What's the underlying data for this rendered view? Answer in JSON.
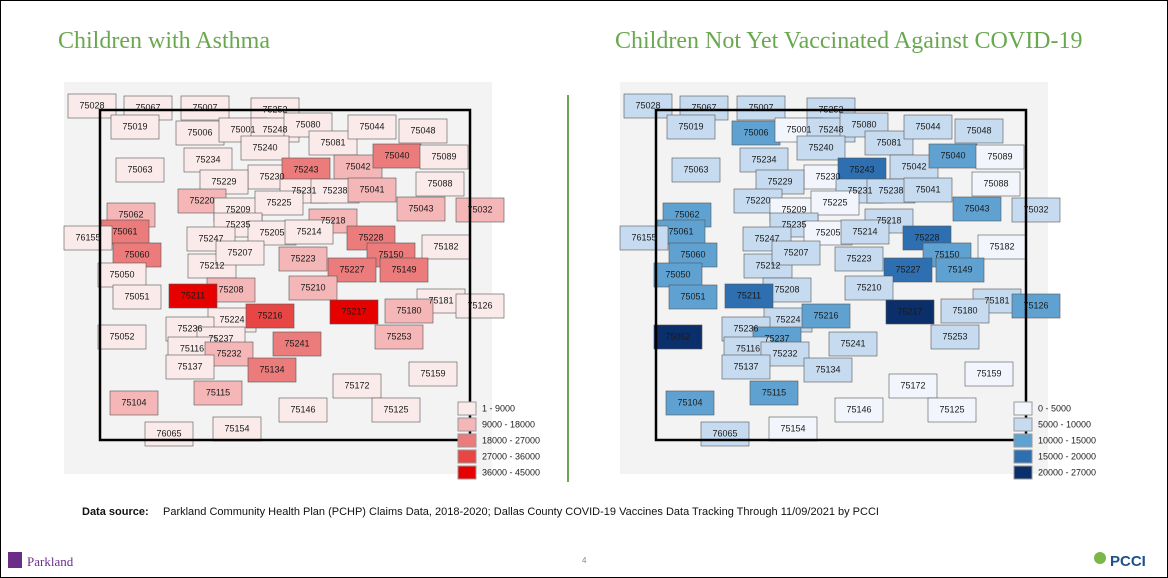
{
  "slide": {
    "page_number": "4",
    "logo_left": "Parkland",
    "logo_right": "PCCI",
    "footer": {
      "label": "Data source:",
      "text": "Parkland Community Health Plan (PCHP) Claims Data, 2018-2020; Dallas County COVID-19 Vaccines Data Tracking Through 11/09/2021 by PCCI"
    }
  },
  "zip_codes": [
    "75028",
    "75067",
    "75007",
    "75252",
    "75019",
    "75006",
    "75001",
    "75248",
    "75080",
    "75081",
    "75044",
    "75048",
    "75240",
    "75234",
    "75230",
    "75243",
    "75042",
    "75040",
    "75089",
    "75063",
    "75229",
    "75231",
    "75238",
    "75041",
    "75088",
    "75220",
    "75209",
    "75225",
    "75043",
    "75032",
    "75062",
    "75235",
    "75218",
    "75061",
    "75247",
    "75205",
    "75214",
    "75228",
    "75150",
    "75182",
    "76155",
    "75060",
    "75212",
    "75207",
    "75223",
    "75227",
    "75149",
    "75050",
    "75208",
    "75210",
    "75211",
    "75051",
    "75181",
    "75126",
    "75224",
    "75216",
    "75217",
    "75180",
    "75052",
    "75236",
    "75237",
    "75253",
    "75116",
    "75232",
    "75241",
    "75137",
    "75134",
    "75172",
    "75159",
    "75104",
    "75115",
    "75146",
    "75125",
    "76065",
    "75154"
  ],
  "maps": [
    {
      "title": "Children with Asthma",
      "legend": [
        {
          "label": "1 - 9000",
          "min": 1,
          "max": 9000,
          "color": "#fbeaea"
        },
        {
          "label": "9000 - 18000",
          "min": 9000,
          "max": 18000,
          "color": "#f4b6b6"
        },
        {
          "label": "18000 - 27000",
          "min": 18000,
          "max": 27000,
          "color": "#ec7b7b"
        },
        {
          "label": "27000 - 36000",
          "min": 27000,
          "max": 36000,
          "color": "#e84545"
        },
        {
          "label": "36000 - 45000",
          "min": 36000,
          "max": 45000,
          "color": "#e60000"
        }
      ],
      "values": [
        5000,
        5000,
        5000,
        5000,
        5000,
        5000,
        5000,
        5000,
        5000,
        5000,
        5000,
        5000,
        5000,
        5000,
        5000,
        22000,
        15000,
        22000,
        5000,
        5000,
        5000,
        5000,
        5000,
        12000,
        5000,
        13000,
        5000,
        5000,
        14000,
        12000,
        14000,
        5000,
        12000,
        22000,
        5000,
        5000,
        5000,
        22000,
        22000,
        5000,
        5000,
        22000,
        6000,
        5000,
        13000,
        22000,
        22000,
        5000,
        10000,
        15000,
        38000,
        8000,
        5000,
        5000,
        5000,
        28000,
        40000,
        12000,
        5000,
        5000,
        5000,
        15000,
        5000,
        14000,
        26000,
        5000,
        20000,
        5000,
        5000,
        13000,
        12000,
        5000,
        5000,
        5000,
        5000
      ]
    },
    {
      "title": "Children Not Yet Vaccinated Against COVID-19",
      "legend": [
        {
          "label": "0 - 5000",
          "min": 0,
          "max": 5000,
          "color": "#f2f6fc"
        },
        {
          "label": "5000 - 10000",
          "min": 5000,
          "max": 10000,
          "color": "#c6dbef"
        },
        {
          "label": "10000 - 15000",
          "min": 10000,
          "max": 15000,
          "color": "#5fa2d2"
        },
        {
          "label": "15000 - 20000",
          "min": 15000,
          "max": 20000,
          "color": "#2d6fb0"
        },
        {
          "label": "20000 - 27000",
          "min": 20000,
          "max": 27000,
          "color": "#0b2f6b"
        }
      ],
      "values": [
        7000,
        7000,
        7000,
        7000,
        9000,
        12000,
        3000,
        6000,
        8000,
        8000,
        7000,
        7000,
        7000,
        7000,
        4000,
        17000,
        7000,
        12000,
        3000,
        7000,
        7000,
        7000,
        7000,
        7000,
        3000,
        7000,
        4000,
        4000,
        12000,
        7000,
        12000,
        7000,
        7000,
        13000,
        7000,
        3000,
        7000,
        17000,
        13000,
        4000,
        7000,
        12000,
        7000,
        7000,
        7000,
        16000,
        12000,
        12000,
        7000,
        7000,
        17000,
        12000,
        7000,
        14000,
        7000,
        12000,
        24000,
        7000,
        22000,
        8000,
        12000,
        7000,
        7000,
        8000,
        8000,
        7000,
        7000,
        4000,
        3000,
        12000,
        12000,
        4000,
        4000,
        7000,
        4000
      ]
    }
  ]
}
